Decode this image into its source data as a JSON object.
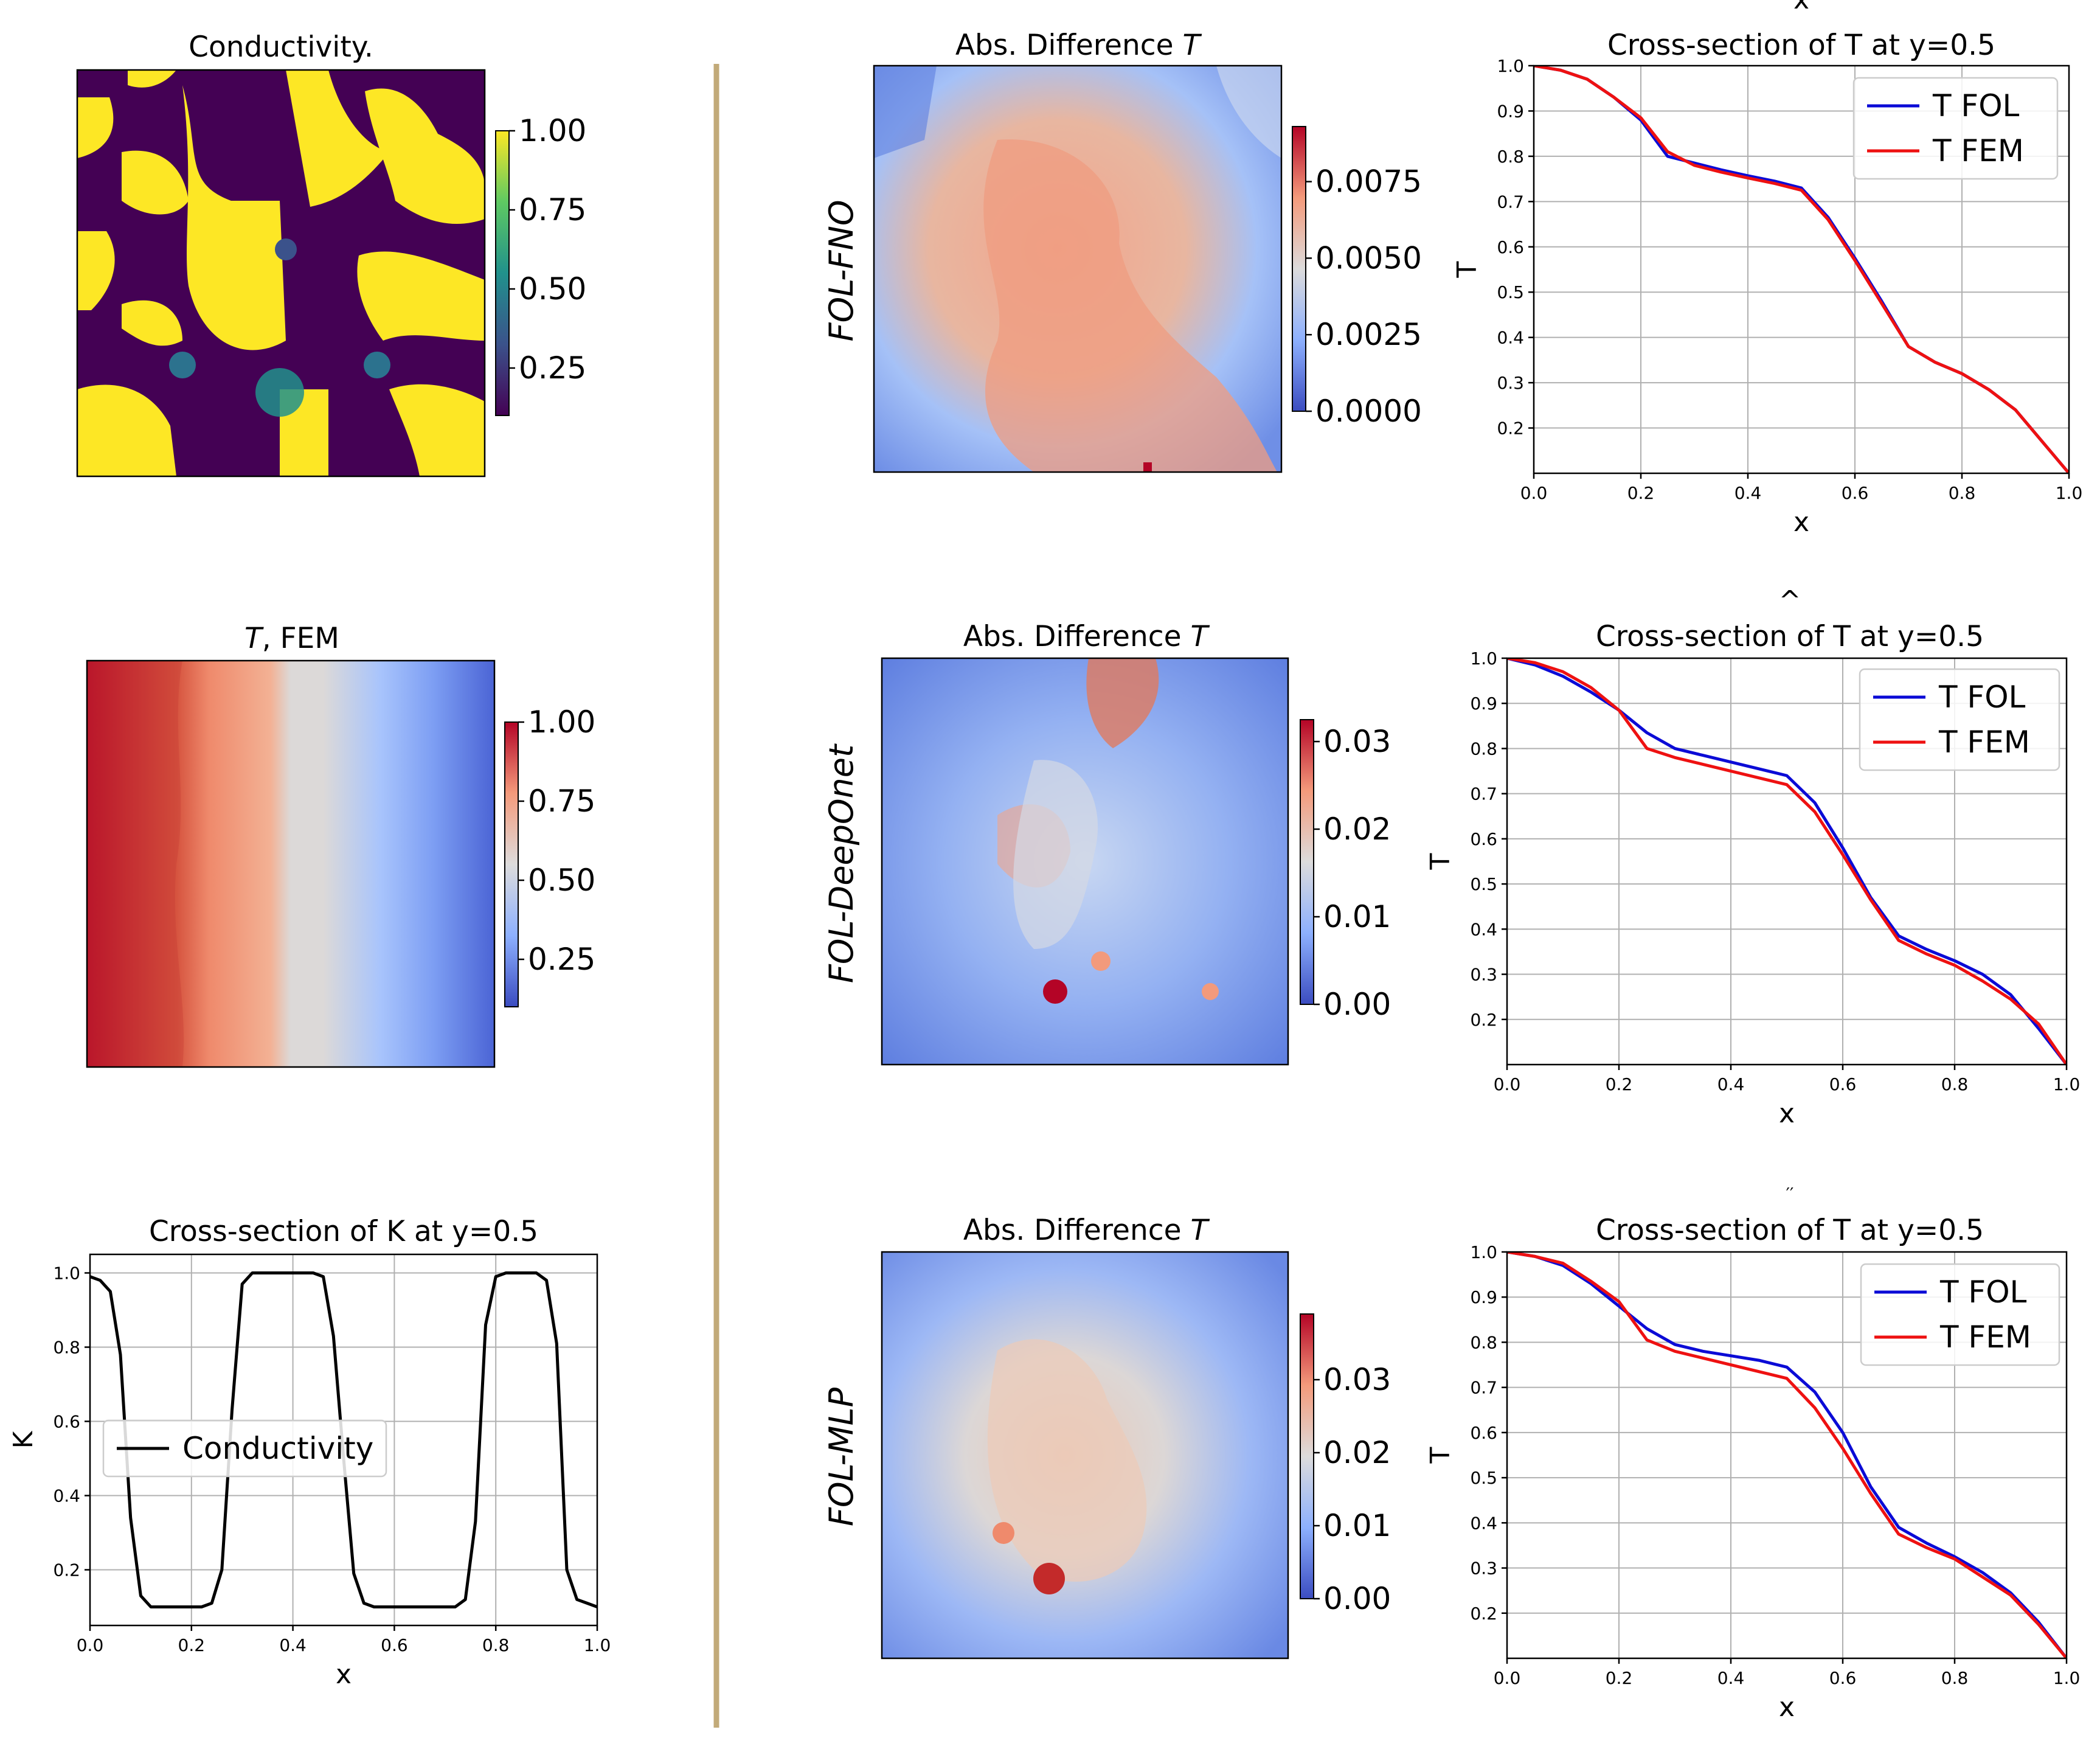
{
  "colors": {
    "t_fol": "#0b0bd6",
    "t_fem": "#ee1111",
    "conductivity_line": "#000000",
    "divider": "#c2aa79"
  },
  "panels": {
    "conductivity_map": {
      "title": "Conductivity.",
      "colormap": "viridis",
      "colorbar_ticks": [
        "0.25",
        "0.50",
        "0.75",
        "1.00"
      ]
    },
    "t_fem_map": {
      "title_italic": "T",
      "title_rest": ", FEM",
      "colormap": "coolwarm",
      "colorbar_ticks": [
        "0.25",
        "0.50",
        "0.75",
        "1.00"
      ]
    },
    "diff_fno": {
      "row_label": "FOL-FNO",
      "title_prefix": "Abs. Difference ",
      "title_italic": "T",
      "colormap": "coolwarm",
      "colorbar_ticks": [
        "0.0000",
        "0.0025",
        "0.0050",
        "0.0075"
      ]
    },
    "diff_deeponet": {
      "row_label": "FOL-DeepOnet",
      "title_prefix": "Abs. Difference ",
      "title_italic": "T",
      "colormap": "coolwarm",
      "colorbar_ticks": [
        "0.00",
        "0.01",
        "0.02",
        "0.03"
      ]
    },
    "diff_mlp": {
      "row_label": "FOL-MLP",
      "title_prefix": "Abs. Difference ",
      "title_italic": "T",
      "colormap": "coolwarm",
      "colorbar_ticks": [
        "0.00",
        "0.01",
        "0.02",
        "0.03"
      ]
    }
  },
  "stray_marks": [
    "x",
    "^",
    "′′"
  ],
  "chart_data": [
    {
      "id": "cross_k",
      "type": "line",
      "title": "Cross-section of K at y=0.5",
      "xlabel": "x",
      "ylabel": "K",
      "xlim": [
        0.0,
        1.0
      ],
      "ylim": [
        0.05,
        1.05
      ],
      "xticks": [
        "0.0",
        "0.2",
        "0.4",
        "0.6",
        "0.8",
        "1.0"
      ],
      "yticks": [
        "0.2",
        "0.4",
        "0.6",
        "0.8",
        "1.0"
      ],
      "grid": true,
      "legend_position": "center-left",
      "series": [
        {
          "name": "Conductivity",
          "x": [
            0.0,
            0.02,
            0.04,
            0.06,
            0.08,
            0.1,
            0.12,
            0.14,
            0.16,
            0.18,
            0.2,
            0.22,
            0.24,
            0.26,
            0.28,
            0.3,
            0.32,
            0.34,
            0.36,
            0.38,
            0.4,
            0.42,
            0.44,
            0.46,
            0.48,
            0.5,
            0.52,
            0.54,
            0.56,
            0.58,
            0.6,
            0.62,
            0.64,
            0.66,
            0.68,
            0.7,
            0.72,
            0.74,
            0.76,
            0.78,
            0.8,
            0.82,
            0.84,
            0.86,
            0.88,
            0.9,
            0.92,
            0.94,
            0.96,
            0.98,
            1.0
          ],
          "values": [
            0.99,
            0.98,
            0.95,
            0.78,
            0.34,
            0.13,
            0.1,
            0.1,
            0.1,
            0.1,
            0.1,
            0.1,
            0.11,
            0.2,
            0.63,
            0.97,
            1.0,
            1.0,
            1.0,
            1.0,
            1.0,
            1.0,
            1.0,
            0.99,
            0.83,
            0.5,
            0.19,
            0.11,
            0.1,
            0.1,
            0.1,
            0.1,
            0.1,
            0.1,
            0.1,
            0.1,
            0.1,
            0.12,
            0.33,
            0.86,
            0.99,
            1.0,
            1.0,
            1.0,
            1.0,
            0.98,
            0.81,
            0.2,
            0.12,
            0.11,
            0.1
          ]
        }
      ]
    },
    {
      "id": "cross_t_fno",
      "type": "line",
      "title": "Cross-section of T at y=0.5",
      "xlabel": "x",
      "ylabel": "T",
      "xlim": [
        0.0,
        1.0
      ],
      "ylim": [
        0.1,
        1.0
      ],
      "xticks": [
        "0.0",
        "0.2",
        "0.4",
        "0.6",
        "0.8",
        "1.0"
      ],
      "yticks": [
        "0.2",
        "0.3",
        "0.4",
        "0.5",
        "0.6",
        "0.7",
        "0.8",
        "0.9",
        "1.0"
      ],
      "grid": true,
      "legend_position": "top-right",
      "x": [
        0.0,
        0.05,
        0.1,
        0.15,
        0.2,
        0.25,
        0.3,
        0.35,
        0.4,
        0.45,
        0.5,
        0.55,
        0.6,
        0.65,
        0.7,
        0.75,
        0.8,
        0.85,
        0.9,
        0.95,
        1.0
      ],
      "series": [
        {
          "name": "T FOL",
          "values": [
            1.0,
            0.99,
            0.97,
            0.93,
            0.88,
            0.8,
            0.785,
            0.77,
            0.757,
            0.745,
            0.73,
            0.665,
            0.575,
            0.48,
            0.38,
            0.345,
            0.32,
            0.285,
            0.24,
            0.17,
            0.1
          ]
        },
        {
          "name": "T FEM",
          "values": [
            1.0,
            0.99,
            0.97,
            0.93,
            0.885,
            0.81,
            0.78,
            0.765,
            0.752,
            0.74,
            0.725,
            0.66,
            0.57,
            0.475,
            0.38,
            0.345,
            0.32,
            0.285,
            0.24,
            0.17,
            0.1
          ]
        }
      ]
    },
    {
      "id": "cross_t_deeponet",
      "type": "line",
      "title": "Cross-section of T at y=0.5",
      "xlabel": "x",
      "ylabel": "T",
      "xlim": [
        0.0,
        1.0
      ],
      "ylim": [
        0.1,
        1.0
      ],
      "xticks": [
        "0.0",
        "0.2",
        "0.4",
        "0.6",
        "0.8",
        "1.0"
      ],
      "yticks": [
        "0.2",
        "0.3",
        "0.4",
        "0.5",
        "0.6",
        "0.7",
        "0.8",
        "0.9",
        "1.0"
      ],
      "grid": true,
      "legend_position": "top-right",
      "x": [
        0.0,
        0.05,
        0.1,
        0.15,
        0.2,
        0.25,
        0.3,
        0.35,
        0.4,
        0.45,
        0.5,
        0.55,
        0.6,
        0.65,
        0.7,
        0.75,
        0.8,
        0.85,
        0.9,
        0.95,
        1.0
      ],
      "series": [
        {
          "name": "T FOL",
          "values": [
            1.0,
            0.985,
            0.96,
            0.925,
            0.885,
            0.835,
            0.8,
            0.785,
            0.77,
            0.755,
            0.74,
            0.68,
            0.58,
            0.47,
            0.385,
            0.355,
            0.33,
            0.3,
            0.255,
            0.18,
            0.1
          ]
        },
        {
          "name": "T FEM",
          "values": [
            1.0,
            0.99,
            0.97,
            0.935,
            0.885,
            0.8,
            0.78,
            0.765,
            0.75,
            0.735,
            0.72,
            0.66,
            0.565,
            0.465,
            0.375,
            0.345,
            0.32,
            0.285,
            0.245,
            0.19,
            0.1
          ]
        }
      ]
    },
    {
      "id": "cross_t_mlp",
      "type": "line",
      "title": "Cross-section of T at y=0.5",
      "xlabel": "x",
      "ylabel": "T",
      "xlim": [
        0.0,
        1.0
      ],
      "ylim": [
        0.1,
        1.0
      ],
      "xticks": [
        "0.0",
        "0.2",
        "0.4",
        "0.6",
        "0.8",
        "1.0"
      ],
      "yticks": [
        "0.2",
        "0.3",
        "0.4",
        "0.5",
        "0.6",
        "0.7",
        "0.8",
        "0.9",
        "1.0"
      ],
      "grid": true,
      "legend_position": "top-right",
      "x": [
        0.0,
        0.05,
        0.1,
        0.15,
        0.2,
        0.25,
        0.3,
        0.35,
        0.4,
        0.45,
        0.5,
        0.55,
        0.6,
        0.65,
        0.7,
        0.75,
        0.8,
        0.85,
        0.9,
        0.95,
        1.0
      ],
      "series": [
        {
          "name": "T FOL",
          "values": [
            1.0,
            0.99,
            0.97,
            0.93,
            0.88,
            0.83,
            0.795,
            0.78,
            0.77,
            0.76,
            0.745,
            0.69,
            0.6,
            0.48,
            0.39,
            0.355,
            0.325,
            0.29,
            0.245,
            0.18,
            0.1
          ]
        },
        {
          "name": "T FEM",
          "values": [
            1.0,
            0.99,
            0.975,
            0.935,
            0.89,
            0.805,
            0.78,
            0.765,
            0.75,
            0.735,
            0.72,
            0.655,
            0.565,
            0.465,
            0.375,
            0.345,
            0.32,
            0.28,
            0.24,
            0.175,
            0.1
          ]
        }
      ]
    }
  ]
}
